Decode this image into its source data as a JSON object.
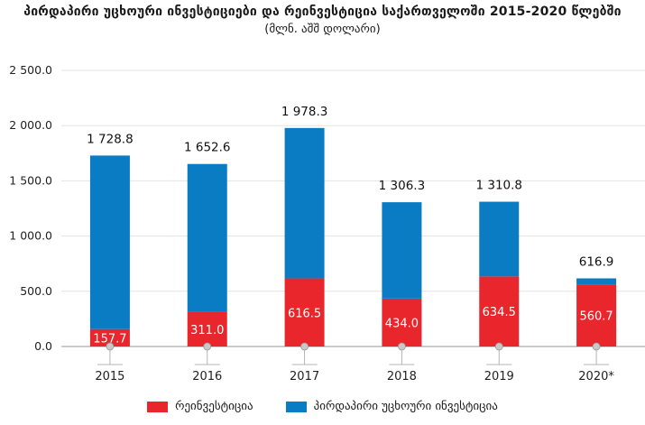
{
  "chart_data": {
    "type": "bar",
    "stacked": true,
    "title": "პირდაპირი უცხოური ინვესტიციები და რეინვესტიცია საქართველოში 2015-2020 წლებში",
    "subtitle": "(მლნ. აშშ დოლარი)",
    "categories": [
      "2015",
      "2016",
      "2017",
      "2018",
      "2019",
      "2020*"
    ],
    "totals": [
      1728.8,
      1652.6,
      1978.3,
      1306.3,
      1310.8,
      616.9
    ],
    "total_labels": [
      "1 728.8",
      "1 652.6",
      "1 978.3",
      "1 306.3",
      "1 310.8",
      "616.9"
    ],
    "series": [
      {
        "name": "რეინვესტიცია",
        "color": "#e8262b",
        "values": [
          157.7,
          311.0,
          616.5,
          434.0,
          634.5,
          560.7
        ],
        "labels": [
          "157.7",
          "311.0",
          "616.5",
          "434.0",
          "634.5",
          "560.7"
        ]
      },
      {
        "name": "პირდაპირი უცხოური ინვესტიცია",
        "color": "#0a7cc4",
        "values": [
          1571.1,
          1341.6,
          1361.8,
          872.3,
          676.3,
          56.2
        ]
      }
    ],
    "ylim": [
      0,
      2500
    ],
    "yticks": [
      0,
      500,
      1000,
      1500,
      2000,
      2500
    ],
    "ytick_labels": [
      "0.0",
      "500.0",
      "1 000.0",
      "1 500.0",
      "2 000.0",
      "2 500.0"
    ],
    "grid": true,
    "legend_position": "bottom"
  }
}
